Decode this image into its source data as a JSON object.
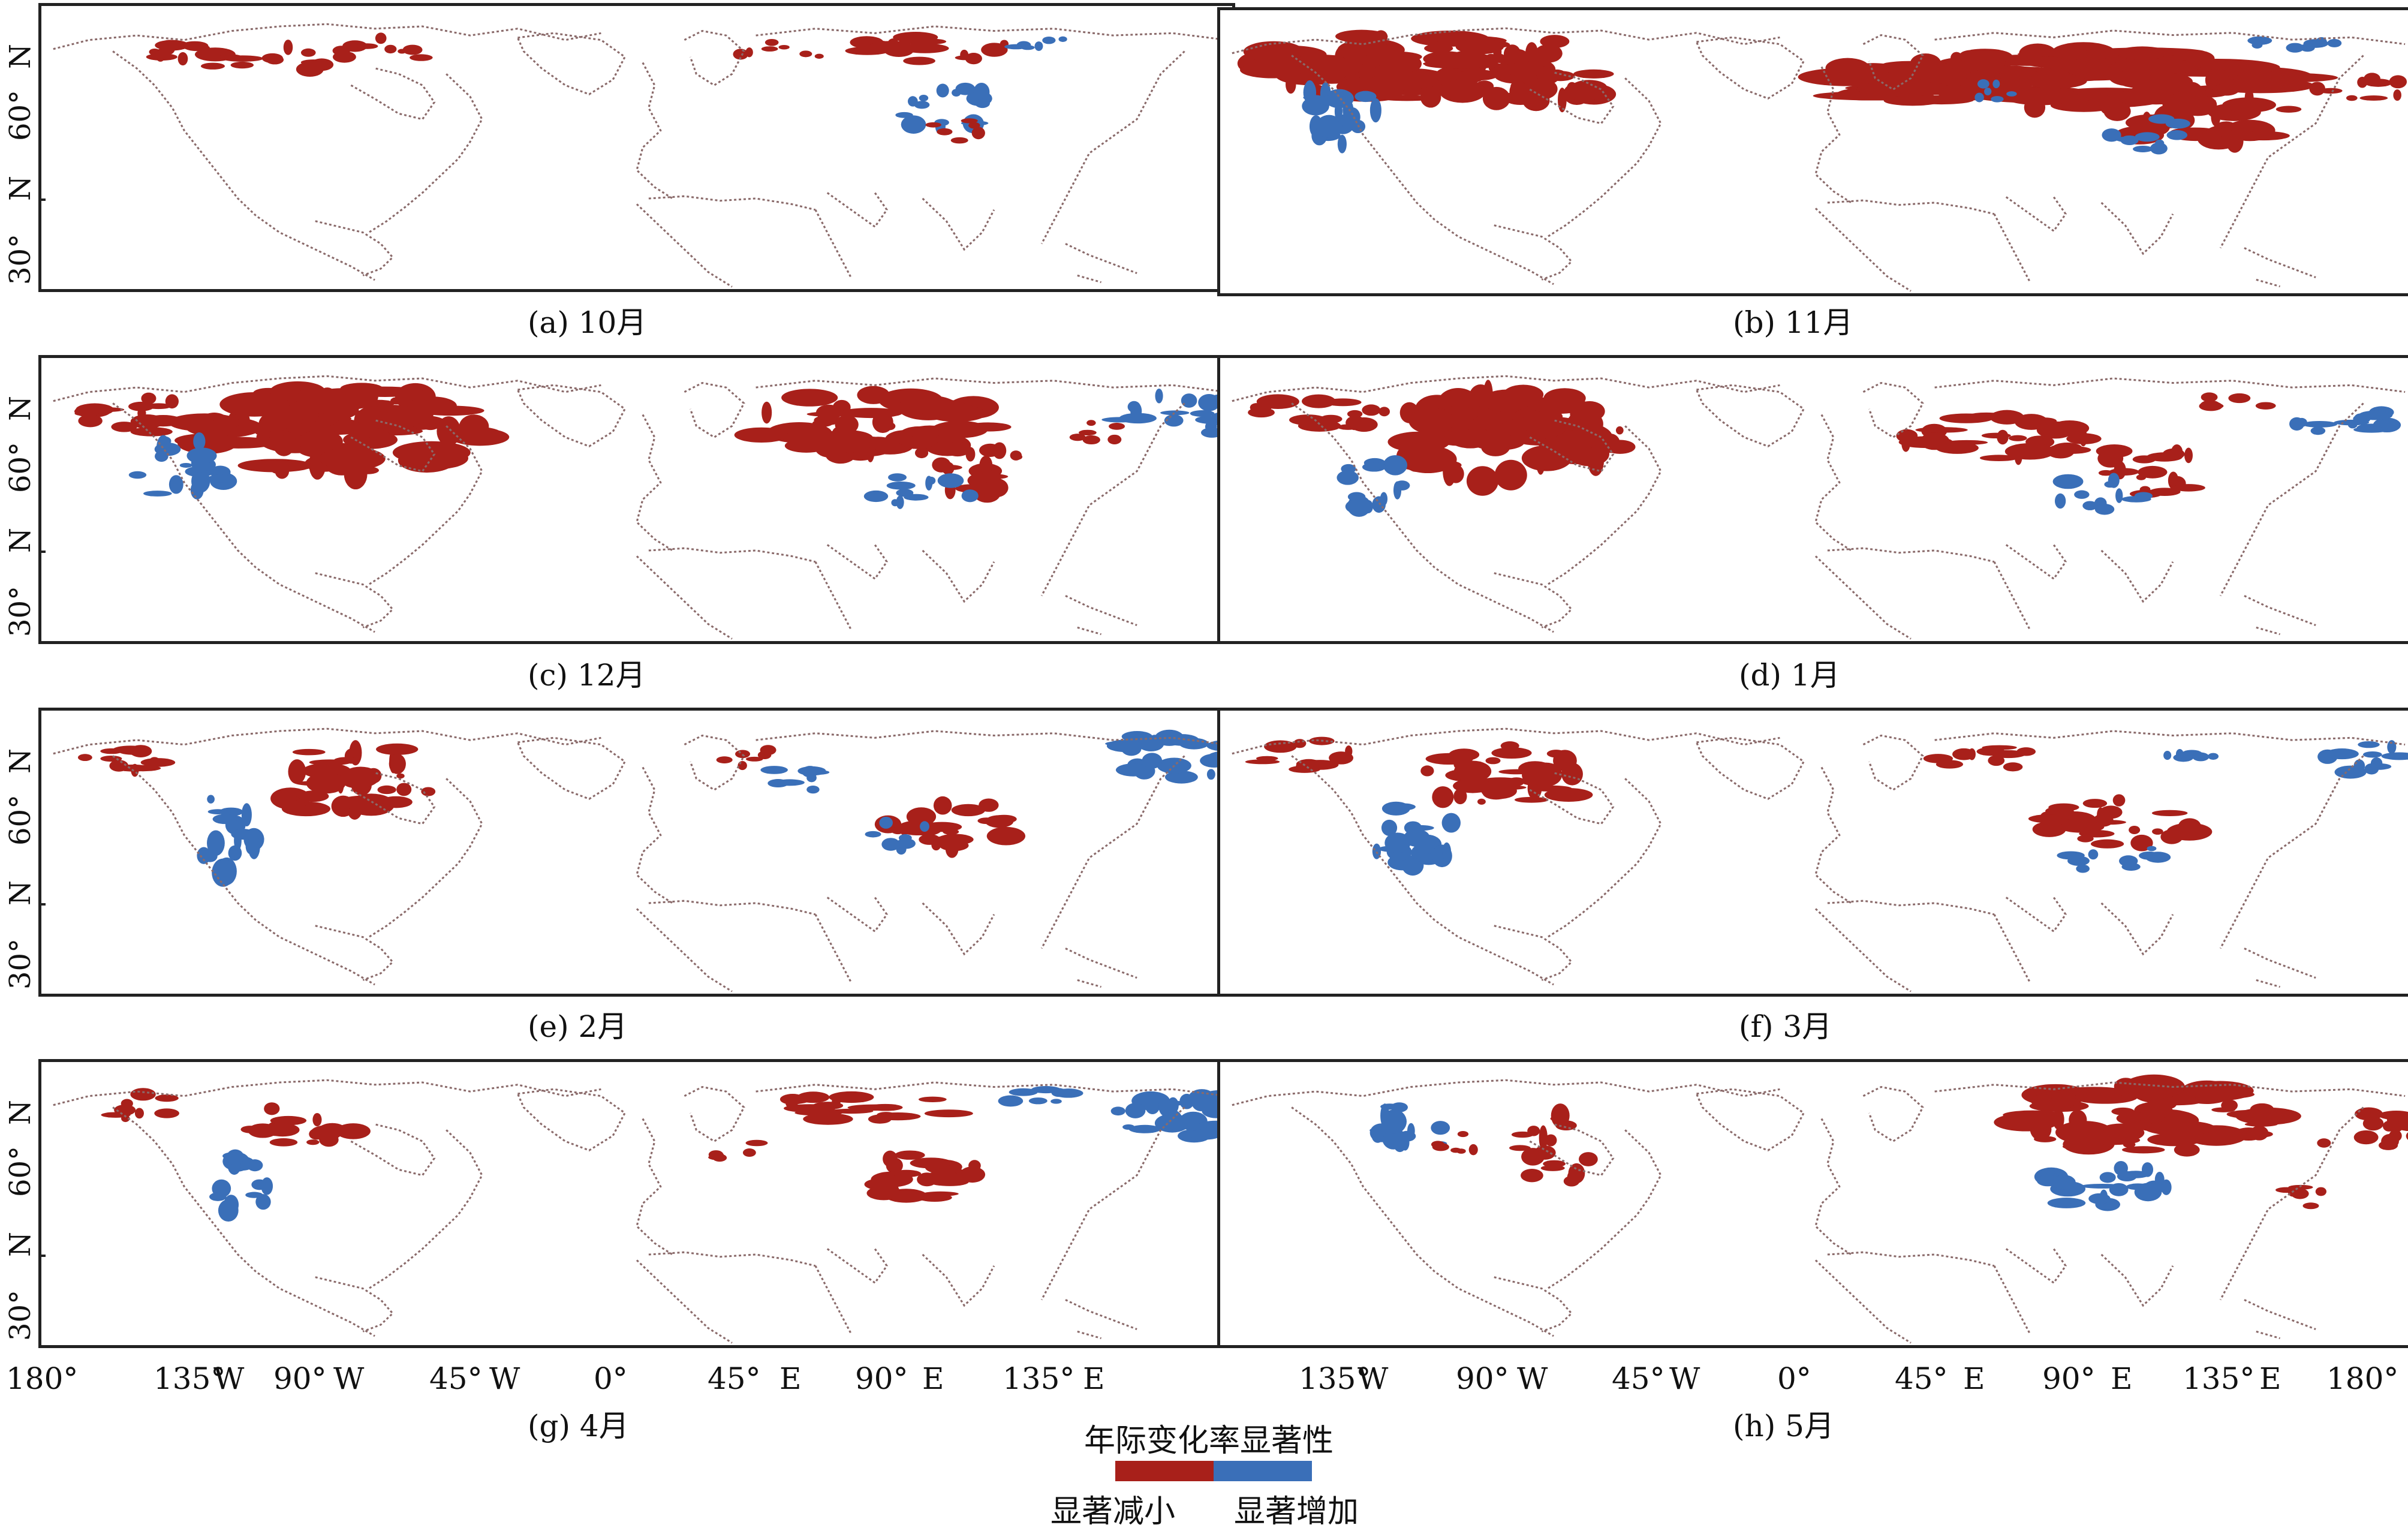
{
  "panels": [
    {
      "id": "a",
      "caption": "(a) 10月",
      "month": "10月"
    },
    {
      "id": "b",
      "caption": "(b) 11月",
      "month": "11月"
    },
    {
      "id": "c",
      "caption": "(c) 12月",
      "month": "12月"
    },
    {
      "id": "d",
      "caption": "(d) 1月",
      "month": "1月"
    },
    {
      "id": "e",
      "caption": "(e) 2月",
      "month": "2月"
    },
    {
      "id": "f",
      "caption": "(f) 3月",
      "month": "3月"
    },
    {
      "id": "g",
      "caption": "(g) 4月",
      "month": "4月"
    },
    {
      "id": "h",
      "caption": "(h) 5月",
      "month": "5月"
    }
  ],
  "y_axis": {
    "n_top": "N",
    "lat60": "60°",
    "n_mid": "N",
    "lat30": "30°"
  },
  "x_axis_left": [
    "180°",
    "135°",
    "W",
    "90°",
    "W",
    "45°",
    "W",
    "0°",
    "45°",
    "E",
    "90°",
    "E",
    "135°",
    "E"
  ],
  "x_axis_right": [
    "135°",
    "W",
    "90°",
    "W",
    "45°",
    "W",
    "0°",
    "45°",
    "E",
    "90°",
    "E",
    "135°",
    "E",
    "180°"
  ],
  "legend": {
    "title": "年际变化率显著性",
    "decrease_label": "显著减小",
    "increase_label": "显著增加",
    "decrease_color": "#a8201a",
    "increase_color": "#3a6fb8"
  },
  "colors": {
    "coast": "#8a6a6a",
    "decrease": "#a8201a",
    "increase": "#3a6fb8"
  }
}
